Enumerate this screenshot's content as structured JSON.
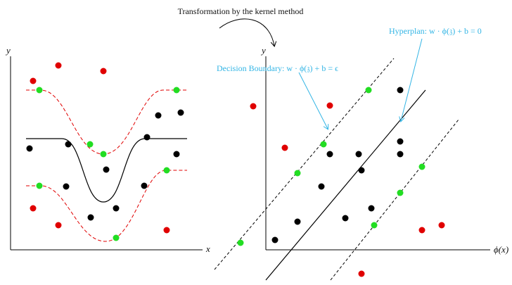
{
  "figure": {
    "title": "Transformation by the kernel method",
    "annotation_hyperplan": "Hyperplan: w · ϕ(𝔷) + b = 0",
    "annotation_decision": "Decision Boundary: w · ϕ(𝔷) + b = ϵ"
  },
  "left_plot": {
    "x_label": "x",
    "y_label": "y"
  },
  "right_plot": {
    "x_label": "ϕ(x)",
    "y_label": "y"
  },
  "colors": {
    "class_a": "#e00000",
    "class_b": "#000000",
    "support": "#22dd22",
    "annotation": "#33b5e5",
    "boundary": "#e00000"
  },
  "legend": {
    "point_kinds": [
      "class_a",
      "class_b",
      "support"
    ]
  }
}
